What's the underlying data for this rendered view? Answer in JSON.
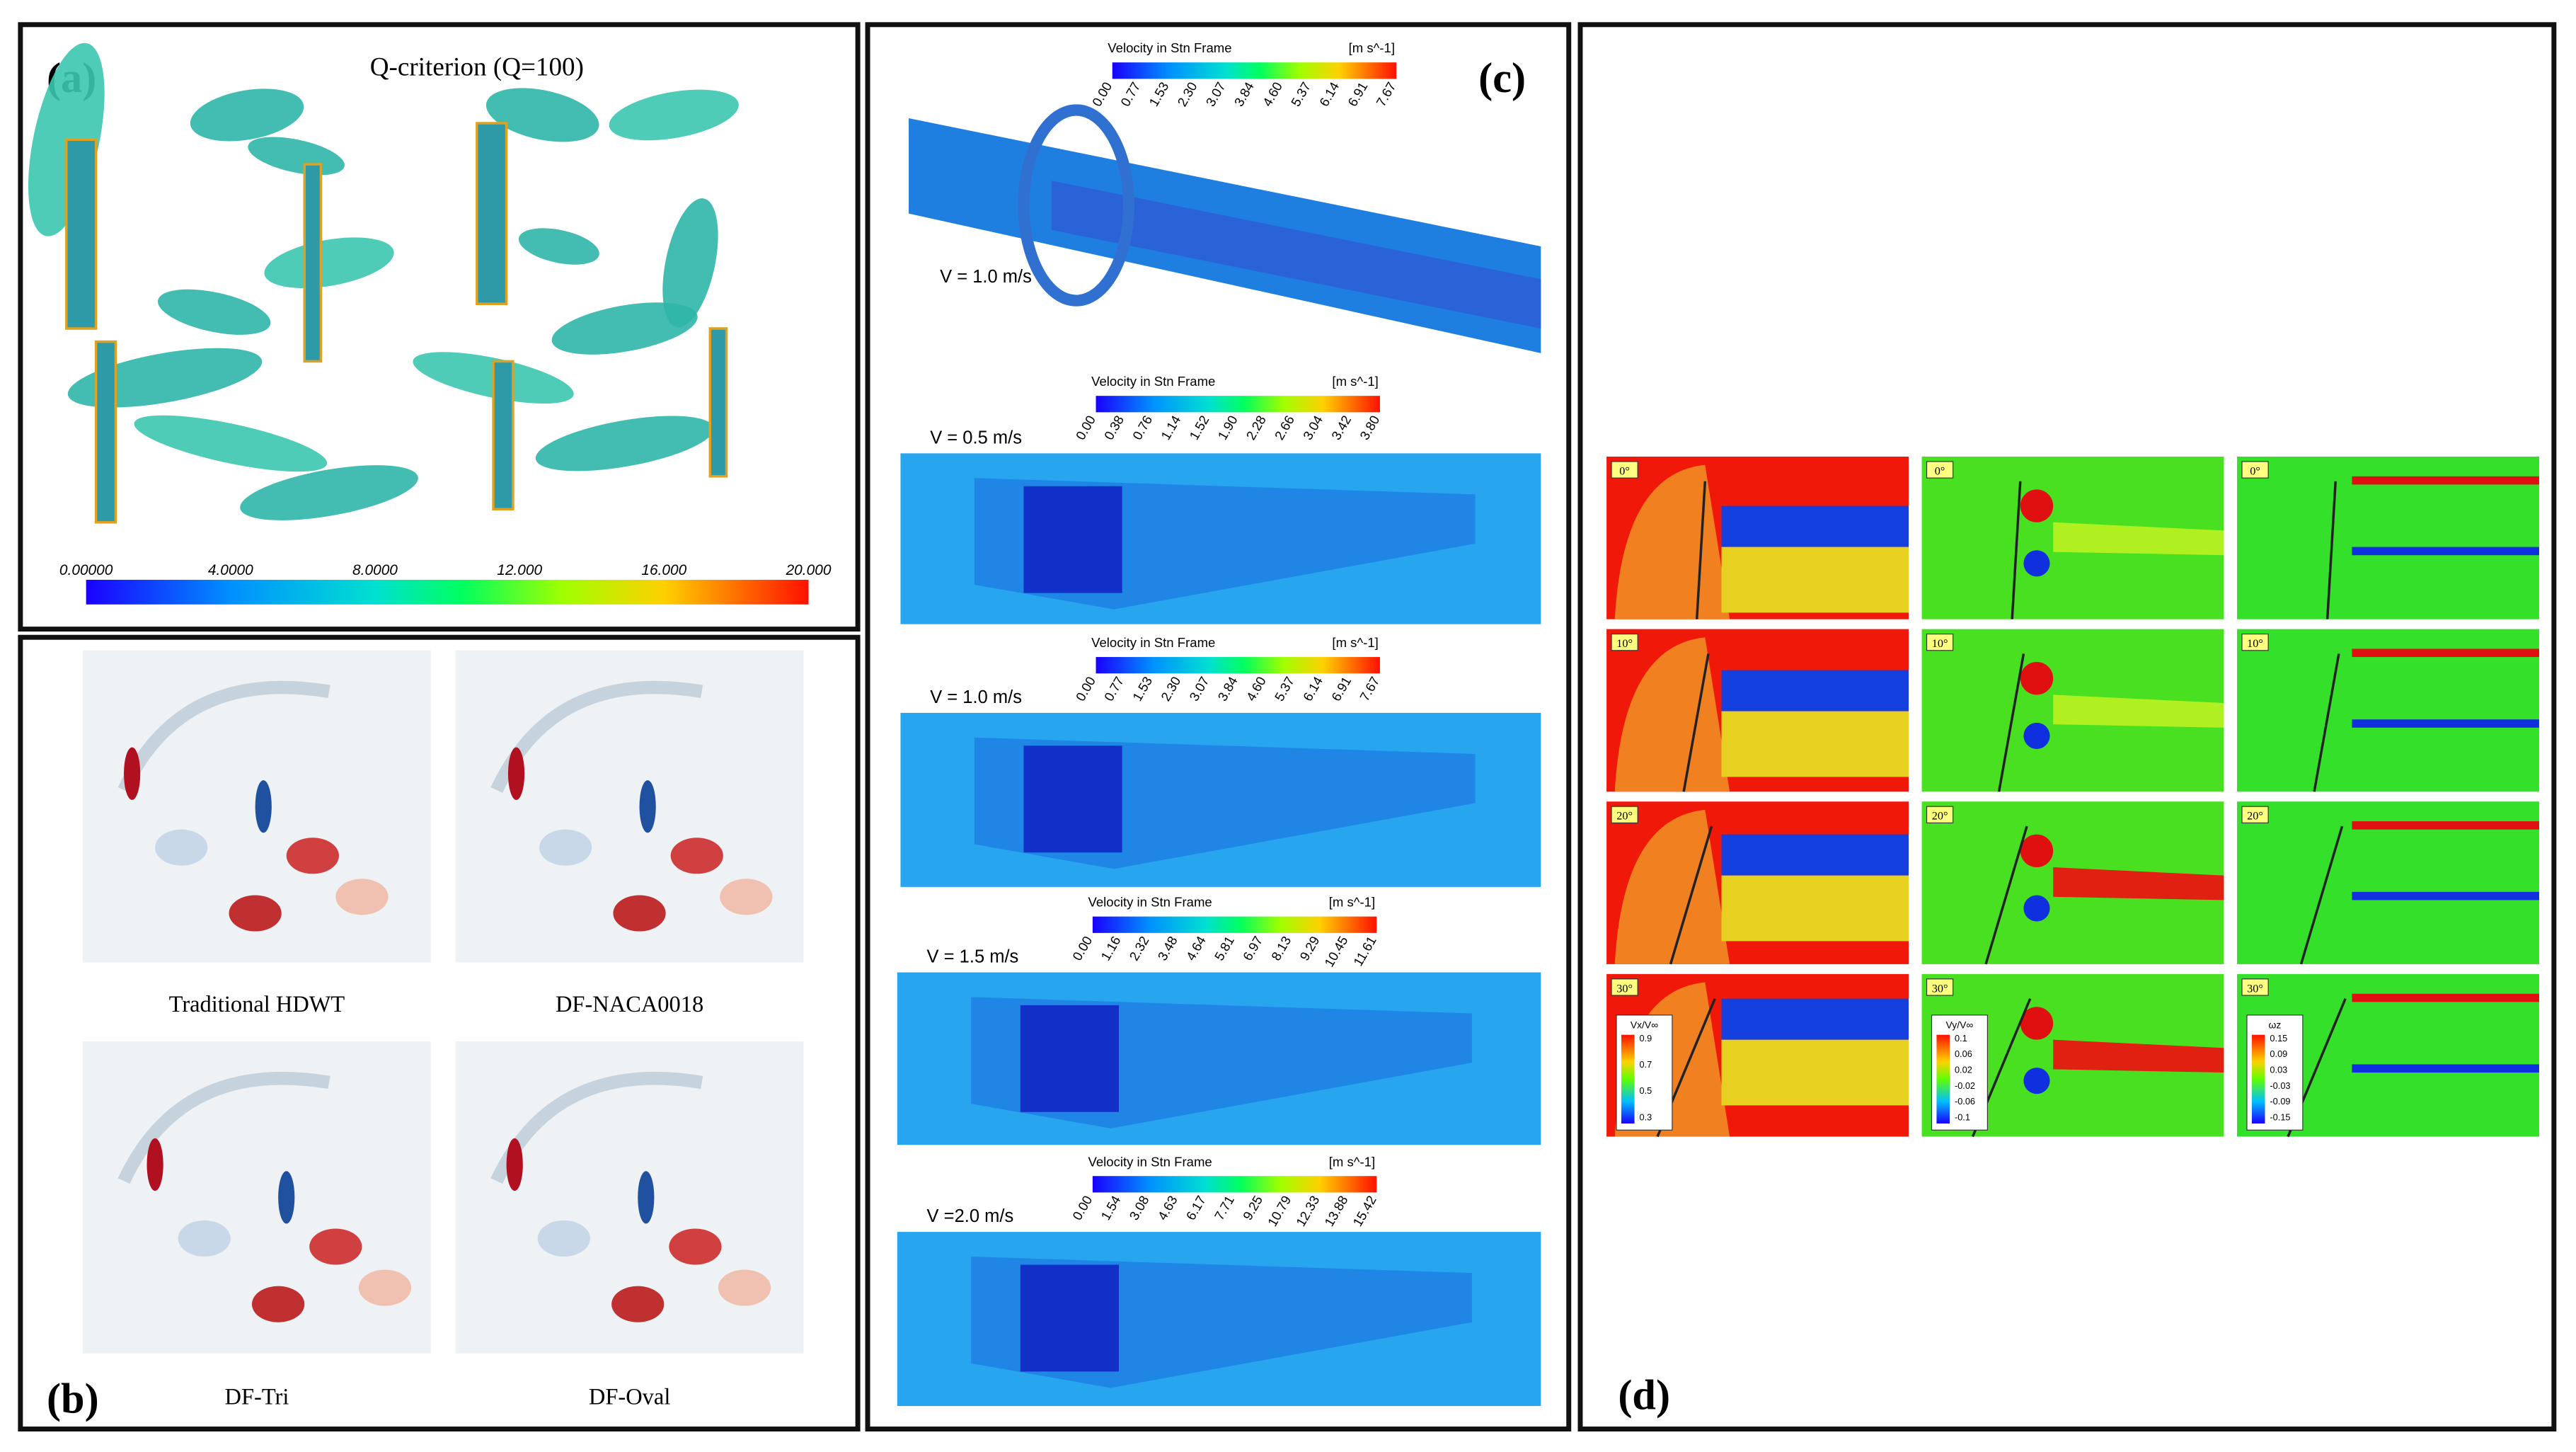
{
  "panels": {
    "a": {
      "label": "(a)",
      "title": "Q-criterion (Q=100)",
      "colorbar_ticks": [
        "0.00000",
        "4.0000",
        "8.0000",
        "12.000",
        "16.000",
        "20.000"
      ]
    },
    "b": {
      "label": "(b)",
      "captions": [
        "Traditional HDWT",
        "DF-NACA0018",
        "DF-Tri",
        "DF-Oval"
      ]
    },
    "c": {
      "label": "(c)",
      "legends": [
        {
          "title": "Velocity in Stn Frame",
          "unit": "[m s^-1]",
          "speed": "V = 1.0 m/s",
          "ticks": [
            "0.00",
            "0.77",
            "1.53",
            "2.30",
            "3.07",
            "3.84",
            "4.60",
            "5.37",
            "6.14",
            "6.91",
            "7.67"
          ]
        },
        {
          "title": "Velocity in Stn Frame",
          "unit": "[m s^-1]",
          "speed": "V = 0.5 m/s",
          "ticks": [
            "0.00",
            "0.38",
            "0.76",
            "1.14",
            "1.52",
            "1.90",
            "2.28",
            "2.66",
            "3.04",
            "3.42",
            "3.80"
          ]
        },
        {
          "title": "Velocity in Stn Frame",
          "unit": "[m s^-1]",
          "speed": "V = 1.0 m/s",
          "ticks": [
            "0.00",
            "0.77",
            "1.53",
            "2.30",
            "3.07",
            "3.84",
            "4.60",
            "5.37",
            "6.14",
            "6.91",
            "7.67"
          ]
        },
        {
          "title": "Velocity in Stn Frame",
          "unit": "[m s^-1]",
          "speed": "V = 1.5 m/s",
          "ticks": [
            "0.00",
            "1.16",
            "2.32",
            "3.48",
            "4.64",
            "5.81",
            "6.97",
            "8.13",
            "9.29",
            "10.45",
            "11.61"
          ]
        },
        {
          "title": "Velocity in Stn Frame",
          "unit": "[m s^-1]",
          "speed": "V =2.0 m/s",
          "ticks": [
            "0.00",
            "1.54",
            "3.08",
            "4.63",
            "6.17",
            "7.71",
            "9.25",
            "10.79",
            "12.33",
            "13.88",
            "15.42"
          ]
        }
      ]
    },
    "d": {
      "label": "(d)",
      "angles": [
        "0°",
        "10°",
        "20°",
        "30°"
      ],
      "legends": [
        {
          "title": "Vx/V∞",
          "ticks": [
            "0.9",
            "0.7",
            "0.5",
            "0.3"
          ]
        },
        {
          "title": "Vy/V∞",
          "ticks": [
            "0.1",
            "0.06",
            "0.02",
            "-0.02",
            "-0.06",
            "-0.1"
          ]
        },
        {
          "title": "ωz",
          "ticks": [
            "0.15",
            "0.09",
            "0.03",
            "-0.03",
            "-0.09",
            "-0.15"
          ]
        }
      ]
    }
  }
}
